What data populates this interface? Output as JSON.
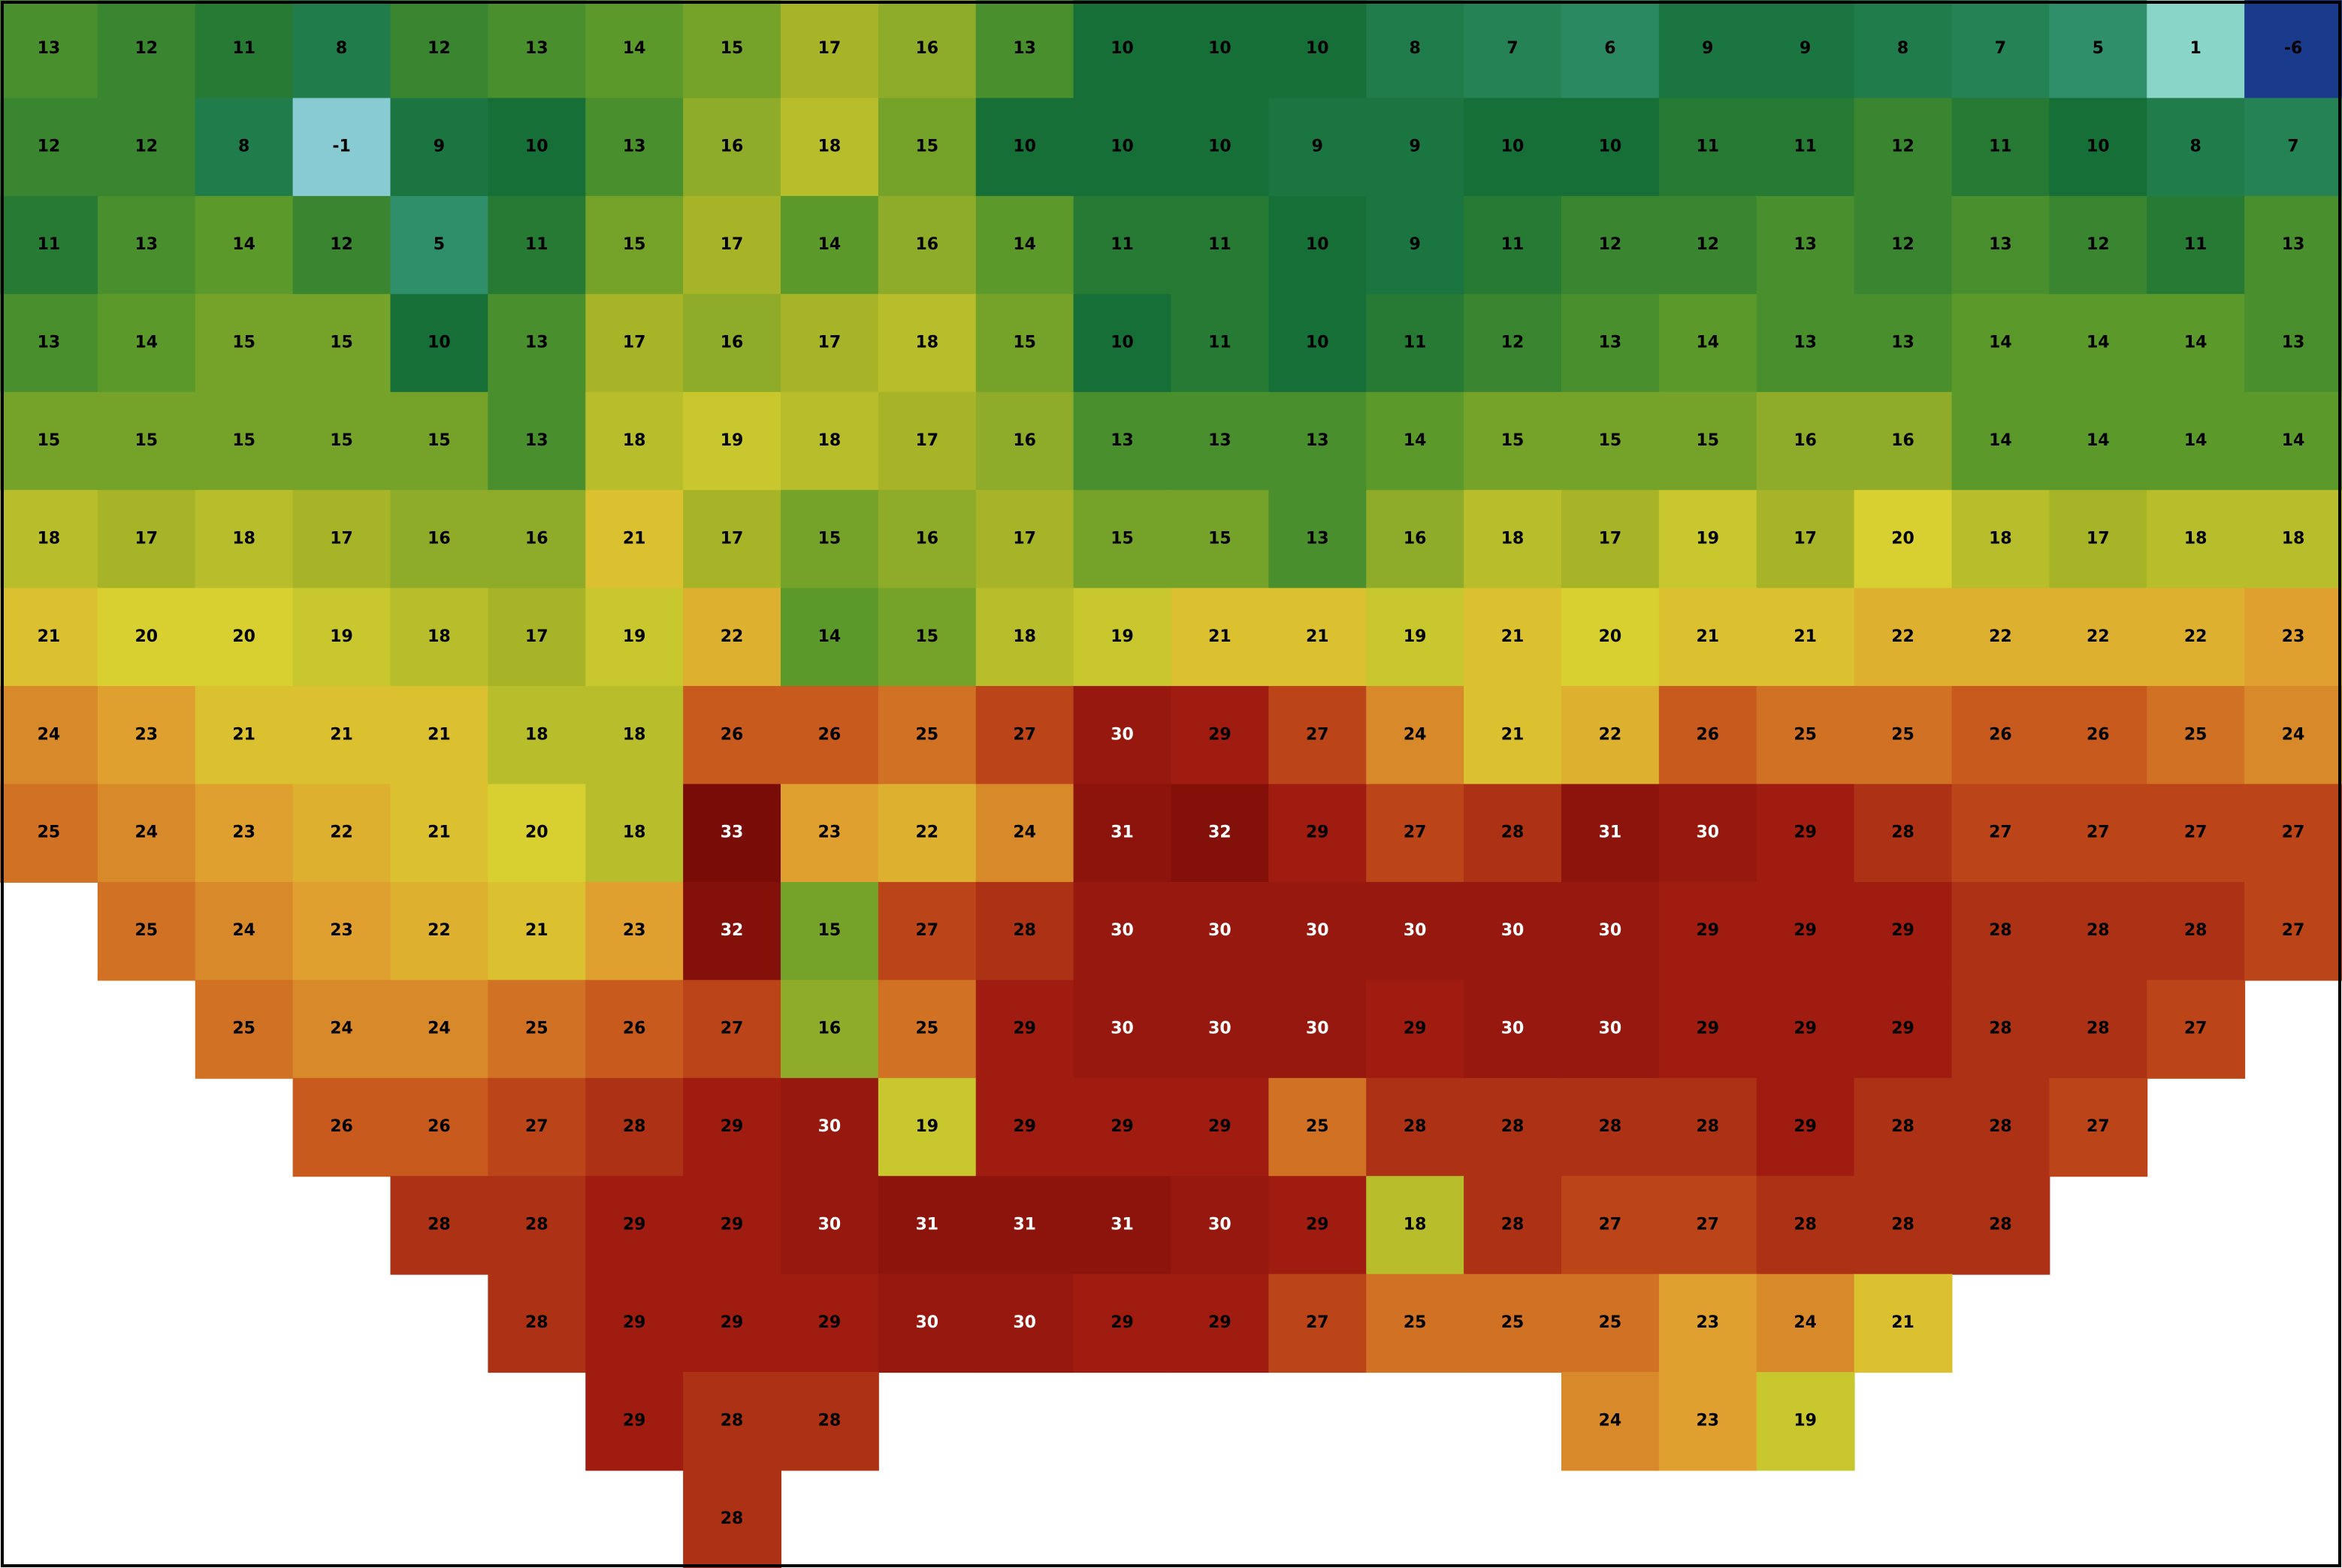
{
  "map": {
    "type": "heatmap",
    "rows": [
      [
        13,
        12,
        11,
        8,
        12,
        13,
        14,
        15,
        17,
        16,
        13,
        10,
        10,
        10,
        8,
        7,
        6,
        9,
        9,
        8,
        7,
        5,
        1,
        -6
      ],
      [
        12,
        12,
        8,
        -1,
        9,
        10,
        13,
        16,
        18,
        15,
        10,
        10,
        10,
        9,
        9,
        10,
        10,
        11,
        11,
        12,
        11,
        10,
        8,
        7
      ],
      [
        11,
        13,
        14,
        12,
        5,
        11,
        15,
        17,
        14,
        16,
        14,
        11,
        11,
        10,
        9,
        11,
        12,
        12,
        13,
        12,
        13,
        12,
        11,
        13
      ],
      [
        13,
        14,
        15,
        15,
        10,
        13,
        17,
        16,
        17,
        18,
        15,
        10,
        11,
        10,
        11,
        12,
        13,
        14,
        13,
        13,
        14,
        14,
        14,
        13
      ],
      [
        15,
        15,
        15,
        15,
        15,
        13,
        18,
        19,
        18,
        17,
        16,
        13,
        13,
        13,
        14,
        15,
        15,
        15,
        16,
        16,
        14,
        14,
        14,
        14
      ],
      [
        18,
        17,
        18,
        17,
        16,
        16,
        21,
        17,
        15,
        16,
        17,
        15,
        15,
        13,
        16,
        18,
        17,
        19,
        17,
        20,
        18,
        17,
        18,
        18
      ],
      [
        21,
        20,
        20,
        19,
        18,
        17,
        19,
        22,
        14,
        15,
        18,
        19,
        21,
        21,
        19,
        21,
        20,
        21,
        21,
        22,
        22,
        22,
        22,
        23
      ],
      [
        24,
        23,
        21,
        21,
        21,
        18,
        18,
        26,
        26,
        25,
        27,
        30,
        29,
        27,
        24,
        21,
        22,
        26,
        25,
        25,
        26,
        26,
        25,
        24
      ],
      [
        25,
        24,
        23,
        22,
        21,
        20,
        18,
        33,
        23,
        22,
        24,
        31,
        32,
        29,
        27,
        28,
        31,
        30,
        29,
        28,
        27,
        27,
        27,
        27
      ],
      [
        null,
        25,
        24,
        23,
        22,
        21,
        23,
        32,
        15,
        27,
        28,
        30,
        30,
        30,
        30,
        30,
        30,
        29,
        29,
        29,
        28,
        28,
        28,
        27
      ],
      [
        null,
        null,
        25,
        24,
        24,
        25,
        26,
        27,
        16,
        25,
        29,
        30,
        30,
        30,
        29,
        30,
        30,
        29,
        29,
        29,
        28,
        28,
        27,
        null
      ],
      [
        null,
        null,
        null,
        26,
        26,
        27,
        28,
        29,
        30,
        19,
        29,
        29,
        29,
        25,
        28,
        28,
        28,
        28,
        29,
        28,
        28,
        27,
        null,
        null
      ],
      [
        null,
        null,
        null,
        null,
        28,
        28,
        29,
        29,
        30,
        31,
        31,
        31,
        30,
        29,
        18,
        28,
        27,
        27,
        28,
        28,
        28,
        null,
        null,
        null
      ],
      [
        null,
        null,
        null,
        null,
        null,
        28,
        29,
        29,
        29,
        30,
        30,
        29,
        29,
        27,
        25,
        25,
        25,
        23,
        24,
        21,
        null,
        null,
        null,
        null
      ],
      [
        null,
        null,
        null,
        null,
        null,
        null,
        29,
        28,
        28,
        null,
        null,
        null,
        null,
        null,
        null,
        null,
        24,
        23,
        19,
        null,
        null,
        null,
        null,
        null
      ],
      [
        null,
        null,
        null,
        null,
        null,
        null,
        null,
        28,
        null,
        null,
        null,
        null,
        null,
        null,
        null,
        null,
        null,
        null,
        null,
        null,
        null,
        null,
        null,
        null
      ]
    ]
  }
}
